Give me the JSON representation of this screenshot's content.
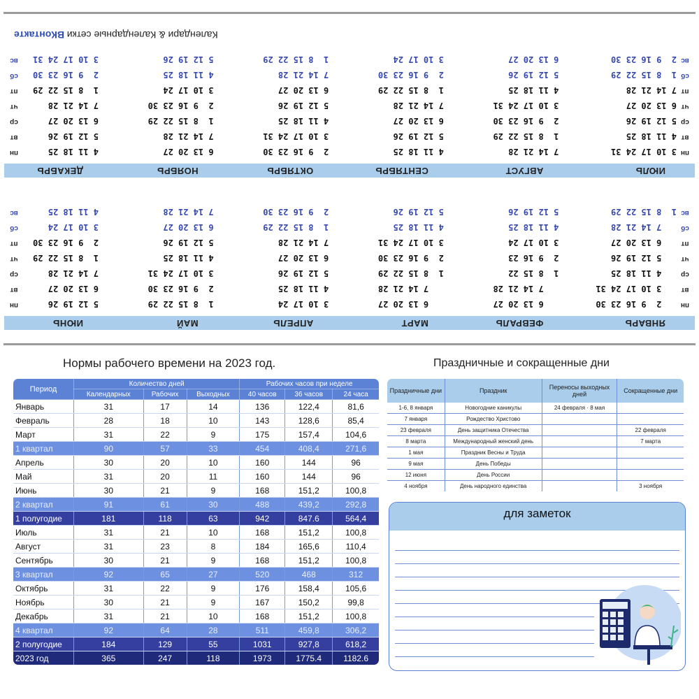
{
  "calendar": {
    "footer_prefix": "Календари & Календарные сетки ",
    "footer_brand": "ВКонтакте",
    "day_labels": [
      "пн",
      "вт",
      "ср",
      "чт",
      "пт",
      "сб",
      "вс"
    ],
    "rows": [
      {
        "months": [
          {
            "name": "ЯНВАРЬ",
            "weeks": [
              "   2  9 16 23 30",
              "   3 10 17 24 31",
              "   4 11 18 25",
              "   5 12 19 26",
              "   6 13 20 27",
              "   7 14 21 28",
              "1  8 15 22 29"
            ]
          },
          {
            "name": "ФЕВРАЛЬ",
            "weeks": [
              "   6 13 20 27",
              "   7 14 21 28",
              "1  8 15 22",
              "2  9 16 23",
              "3 10 17 24",
              "4 11 18 25",
              "5 12 19 26"
            ]
          },
          {
            "name": "МАРТ",
            "weeks": [
              "   6 13 20 27",
              "   7 14 21 28",
              "1  8 15 22 29",
              "2  9 16 23 30",
              "3 10 17 24 31",
              "4 11 18 25",
              "5 12 19 26"
            ]
          },
          {
            "name": "АПРЕЛЬ",
            "weeks": [
              "3 10 17 24",
              "4 11 18 25",
              "5 12 19 26",
              "6 13 20 27",
              "7 14 21 28",
              "1  8 15 22 29",
              "2  9 16 23 30"
            ]
          },
          {
            "name": "МАЙ",
            "weeks": [
              "1  8 15 22 29",
              "2  9 16 23 30",
              "3 10 17 24 31",
              "4 11 18 25",
              "5 12 19 26",
              "6 13 20 27",
              "7 14 21 28"
            ]
          },
          {
            "name": "ИЮНЬ",
            "weeks": [
              "5 12 19 26",
              "6 13 20 27",
              "7 14 21 28",
              "1  8 15 22 29",
              "2  9 16 23 30",
              "3 10 17 24",
              "4 11 18 25"
            ]
          }
        ]
      },
      {
        "months": [
          {
            "name": "ИЮЛЬ",
            "weeks": [
              "3 10 17 24 31",
              "4 11 18 25",
              "5 12 19 26",
              "6 13 20 27",
              "7 14 21 28",
              "1  8 15 22 29",
              "2  9 16 23 30"
            ]
          },
          {
            "name": "АВГУСТ",
            "weeks": [
              "7 14 21 28",
              "1  8 15 22 29",
              "2  9 16 23 30",
              "3 10 17 24 31",
              "4 11 18 25",
              "5 12 19 26",
              "6 13 20 27"
            ]
          },
          {
            "name": "СЕНТЯБРЬ",
            "weeks": [
              "4 11 18 25",
              "5 12 19 26",
              "6 13 20 27",
              "7 14 21 28",
              "1  8 15 22 29",
              "2  9 16 23 30",
              "3 10 17 24"
            ]
          },
          {
            "name": "ОКТЯБРЬ",
            "weeks": [
              "2  9 16 23 30",
              "3 10 17 24 31",
              "4 11 18 25",
              "5 12 19 26",
              "6 13 20 27",
              "7 14 21 28",
              "1  8 15 22 29"
            ]
          },
          {
            "name": "НОЯБРЬ",
            "weeks": [
              "6 13 20 27",
              "7 14 21 28",
              "1  8 15 22 29",
              "2  9 16 23 30",
              "3 10 17 24",
              "4 11 18 25",
              "5 12 19 26"
            ]
          },
          {
            "name": "ДЕКАБРЬ",
            "weeks": [
              "4 11 18 25",
              "5 12 19 26",
              "6 13 20 27",
              "7 14 21 28",
              "1  8 15 22 29",
              "2  9 16 23 30",
              "3 10 17 24 31"
            ]
          }
        ]
      }
    ]
  },
  "norms": {
    "title": "Нормы рабочего времени на 2023 год.",
    "col_period": "Период",
    "group_days": "Количество дней",
    "group_hours": "Рабочих часов при неделе",
    "sub": [
      "Календарных",
      "Рабочих",
      "Выходных",
      "40 часов",
      "36 часов",
      "24 часа"
    ],
    "rows": [
      {
        "t": "",
        "c": [
          "Январь",
          "31",
          "17",
          "14",
          "136",
          "122,4",
          "81,6"
        ]
      },
      {
        "t": "",
        "c": [
          "Февраль",
          "28",
          "18",
          "10",
          "143",
          "128,6",
          "85,4"
        ]
      },
      {
        "t": "",
        "c": [
          "Март",
          "31",
          "22",
          "9",
          "175",
          "157,4",
          "104,6"
        ]
      },
      {
        "t": "q",
        "c": [
          "1 квартал",
          "90",
          "57",
          "33",
          "454",
          "408,4",
          "271,6"
        ]
      },
      {
        "t": "",
        "c": [
          "Апрель",
          "30",
          "20",
          "10",
          "160",
          "144",
          "96"
        ]
      },
      {
        "t": "",
        "c": [
          "Май",
          "31",
          "20",
          "11",
          "160",
          "144",
          "96"
        ]
      },
      {
        "t": "",
        "c": [
          "Июнь",
          "30",
          "21",
          "9",
          "168",
          "151,2",
          "100,8"
        ]
      },
      {
        "t": "q",
        "c": [
          "2 квартал",
          "91",
          "61",
          "30",
          "488",
          "439,2",
          "292,8"
        ]
      },
      {
        "t": "h",
        "c": [
          "1 полугодие",
          "181",
          "118",
          "63",
          "942",
          "847.6",
          "564,4"
        ]
      },
      {
        "t": "",
        "c": [
          "Июль",
          "31",
          "21",
          "10",
          "168",
          "151,2",
          "100,8"
        ]
      },
      {
        "t": "",
        "c": [
          "Август",
          "31",
          "23",
          "8",
          "184",
          "165,6",
          "110,4"
        ]
      },
      {
        "t": "",
        "c": [
          "Сентябрь",
          "30",
          "21",
          "9",
          "168",
          "151,2",
          "100,8"
        ]
      },
      {
        "t": "q",
        "c": [
          "3 квартал",
          "92",
          "65",
          "27",
          "520",
          "468",
          "312"
        ]
      },
      {
        "t": "",
        "c": [
          "Октябрь",
          "31",
          "22",
          "9",
          "176",
          "158,4",
          "105,6"
        ]
      },
      {
        "t": "",
        "c": [
          "Ноябрь",
          "30",
          "21",
          "9",
          "167",
          "150,2",
          "99,8"
        ]
      },
      {
        "t": "",
        "c": [
          "Декабрь",
          "31",
          "21",
          "10",
          "168",
          "151,2",
          "100,8"
        ]
      },
      {
        "t": "q",
        "c": [
          "4 квартал",
          "92",
          "64",
          "28",
          "511",
          "459,8",
          "306,2"
        ]
      },
      {
        "t": "h",
        "c": [
          "2 полугодие",
          "184",
          "129",
          "55",
          "1031",
          "927,8",
          "618,2"
        ]
      },
      {
        "t": "y",
        "c": [
          "2023 год",
          "365",
          "247",
          "118",
          "1973",
          "1775.4",
          "1182.6"
        ]
      }
    ]
  },
  "holidays": {
    "title": "Праздничные и сокращенные дни",
    "headers": [
      "Праздничные дни",
      "Праздник",
      "Переносы выходных дней",
      "Сокращенные дни"
    ],
    "rows": [
      [
        "1-6, 8 января",
        "Новогодние каникулы",
        "24 февраля · 8 мая",
        ""
      ],
      [
        "7 января",
        "Рождество Христово",
        "",
        ""
      ],
      [
        "23 февраля",
        "День защитника Отечества",
        "",
        "22 февраля"
      ],
      [
        "8 марта",
        "Международный женский день",
        "",
        "7 марта"
      ],
      [
        "1 мая",
        "Праздник Весны и Труда",
        "",
        ""
      ],
      [
        "9 мая",
        "День Победы",
        "",
        ""
      ],
      [
        "12 июня",
        "День России",
        "",
        ""
      ],
      [
        "4 ноября",
        "День народного единства",
        "",
        "3 ноября"
      ]
    ]
  },
  "notes": {
    "title": "для заметок"
  },
  "colors": {
    "accent": "#5c82d6",
    "light": "#a9cdea",
    "dark": "#202a7a",
    "weekend": "#3548b0"
  }
}
